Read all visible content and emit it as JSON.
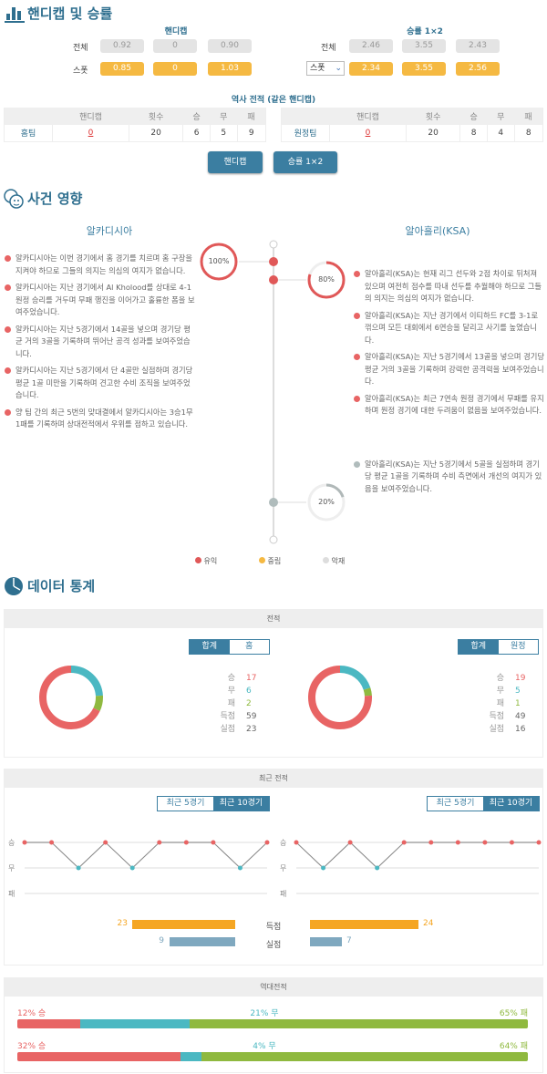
{
  "colors": {
    "win": "#e86464",
    "draw": "#4bb8c2",
    "loss": "#8fb93f",
    "accent": "#3b7ea1",
    "orange": "#f5a623",
    "steel": "#7fa8bf",
    "neutral": "#f5b942",
    "bad": "#d5d5d5",
    "grey_node": "#b0bcbc"
  },
  "handicap_section": {
    "title": "핸디캡 및 승률",
    "icon": "bar-chart-icon",
    "handicap": {
      "title": "핸디캡",
      "rows": [
        {
          "label": "전체",
          "values": [
            "0.92",
            "0",
            "0.90"
          ]
        },
        {
          "label": "스폿",
          "values": [
            "0.85",
            "0",
            "1.03"
          ]
        }
      ]
    },
    "odds": {
      "title": "승률 1×2",
      "rows": [
        {
          "label": "전체",
          "values": [
            "2.46",
            "3.55",
            "2.43"
          ]
        },
        {
          "select": "스폿",
          "values": [
            "2.34",
            "3.55",
            "2.56"
          ]
        }
      ]
    },
    "history_title": "역사 전적  (같은 핸디캡)",
    "headers": [
      "",
      "핸디캡",
      "횟수",
      "승",
      "무",
      "패"
    ],
    "home": [
      "홈팀",
      "0",
      "20",
      "6",
      "5",
      "9"
    ],
    "away": [
      "원정팀",
      "0",
      "20",
      "8",
      "4",
      "8"
    ],
    "buttons": [
      "핸디캡",
      "승률 1×2"
    ]
  },
  "events": {
    "title": "사건 영향",
    "icon": "faces-icon",
    "home_team": "알카디시아",
    "away_team": "알아흘리(KSA)",
    "home_pct": "100%",
    "away_pct": "80%",
    "away_neg_pct": "20%",
    "home_items": [
      "알카디시아는 이번 경기에서 홈 경기를 치르며 홈 구장을 지켜야 하므로 그들의 의지는 의심의 여지가 없습니다.",
      "알카디시아는 지난 경기에서 Al Kholood를 상대로 4-1 원정 승리를 거두며 무패 행진을 이어가고 훌륭한 폼을 보여주었습니다.",
      "알카디시아는 지난 5경기에서 14골을 넣으며 경기당 평균 거의 3골을 기록하며 뛰어난 공격 성과를 보여주었습니다.",
      "알카디시아는 지난 5경기에서 단 4골만 실점하며 경기당 평균 1골 미만을 기록하며 견고한 수비 조직을 보여주었습니다.",
      "양 팀 간의 최근 5번의 맞대결에서 알카디시아는 3승1무1패를 기록하며 상대전적에서 우위를 점하고 있습니다."
    ],
    "away_items": [
      "알아흘리(KSA)는 현재 리그 선두와 2점 차이로 뒤처져 있으며 여전히 점수를 따내 선두를 추월해야 하므로 그들의 의지는 의심의 여지가 없습니다.",
      "알아흘리(KSA)는 지난 경기에서 이티하드 FC를 3-1로 꺾으며 모든 대회에서 6연승을 달리고 사기를 높였습니다.",
      "알아흘리(KSA)는 지난 5경기에서 13골을 넣으며 경기당 평균 거의 3골을 기록하며 강력한 공격력을 보여주었습니다.",
      "알아흘리(KSA)는 최근 7연속 원정 경기에서 무패를 유지하며 원정 경기에 대한 두려움이 없음을 보여주었습니다."
    ],
    "away_neg_items": [
      "알아흘리(KSA)는 지난 5경기에서 5골을 실점하며 경기당 평균 1골을 기록하며 수비 측면에서 개선의 여지가 있음을 보여주었습니다."
    ],
    "legend": [
      "유익",
      "중립",
      "악재"
    ]
  },
  "stats": {
    "title": "데이터 통계",
    "icon": "pie-chart-icon",
    "record": {
      "title": "전적",
      "home": {
        "tabs": [
          "합계",
          "홈"
        ],
        "labels": [
          "승",
          "무",
          "패",
          "득점",
          "실점"
        ],
        "values": [
          "17",
          "6",
          "2",
          "59",
          "23"
        ]
      },
      "away": {
        "tabs": [
          "합계",
          "원정"
        ],
        "labels": [
          "승",
          "무",
          "패",
          "득점",
          "실점"
        ],
        "values": [
          "19",
          "5",
          "1",
          "49",
          "16"
        ]
      }
    },
    "recent": {
      "title": "최근 전적",
      "tabs": [
        "최근 5경기",
        "최근 10경기"
      ],
      "axis": [
        "승",
        "무",
        "패"
      ],
      "home_results": [
        "W",
        "W",
        "D",
        "W",
        "D",
        "W",
        "W",
        "W",
        "D",
        "W"
      ],
      "away_results": [
        "W",
        "D",
        "W",
        "D",
        "W",
        "W",
        "W",
        "W",
        "W",
        "W"
      ],
      "scored_label": "득점",
      "conceded_label": "실점",
      "home_scored": "23",
      "home_conceded": "9",
      "away_scored": "24",
      "away_conceded": "7"
    },
    "h2h": {
      "title": "역대전적",
      "rows": [
        {
          "win": "12% 승",
          "draw": "21% 무",
          "loss": "65% 패",
          "w": 12,
          "d": 21,
          "l": 65
        },
        {
          "win": "32% 승",
          "draw": "4% 무",
          "loss": "64% 패",
          "w": 32,
          "d": 4,
          "l": 64
        }
      ]
    }
  }
}
